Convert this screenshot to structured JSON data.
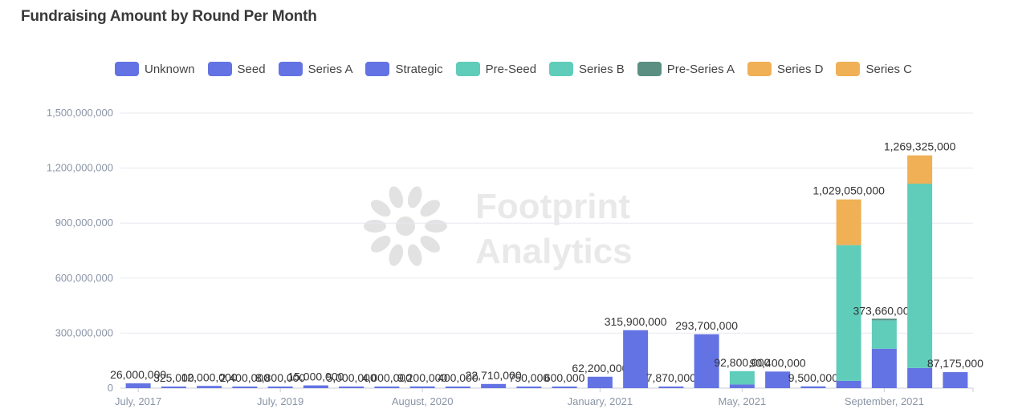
{
  "title": "Fundraising Amount by Round Per Month",
  "legend": [
    {
      "label": "Unknown",
      "color": "#6373e3"
    },
    {
      "label": "Seed",
      "color": "#6373e3"
    },
    {
      "label": "Series A",
      "color": "#6373e3"
    },
    {
      "label": "Strategic",
      "color": "#6373e3"
    },
    {
      "label": "Pre-Seed",
      "color": "#5fcdba"
    },
    {
      "label": "Series B",
      "color": "#5fcdba"
    },
    {
      "label": "Pre-Series A",
      "color": "#5a8f82"
    },
    {
      "label": "Series D",
      "color": "#f0b055"
    },
    {
      "label": "Series C",
      "color": "#f0b055"
    }
  ],
  "watermark": {
    "line1": "Footprint",
    "line2": "Analytics"
  },
  "chart_data": {
    "type": "bar",
    "stacked": true,
    "title": "Fundraising Amount by Round Per Month",
    "ylim": [
      0,
      1500000000
    ],
    "yticks": [
      "0",
      "300,000,000",
      "600,000,000",
      "900,000,000",
      "1,200,000,000",
      "1,500,000,000"
    ],
    "grid": true,
    "legend_position": "top",
    "x_tick_labels": [
      "July, 2017",
      "July, 2019",
      "August, 2020",
      "January, 2021",
      "May, 2021",
      "September, 2021"
    ],
    "bars": [
      {
        "label": "26,000,000",
        "total": 26000000,
        "segments": [
          {
            "v": 26000000,
            "c": "#6373e3"
          }
        ]
      },
      {
        "label": "325,000",
        "total": 325000,
        "segments": [
          {
            "v": 325000,
            "c": "#6373e3"
          }
        ]
      },
      {
        "label": "12,000,000",
        "total": 12000000,
        "segments": [
          {
            "v": 12000000,
            "c": "#6373e3"
          }
        ]
      },
      {
        "label": "2,400,000",
        "total": 2400000,
        "segments": [
          {
            "v": 2400000,
            "c": "#6373e3"
          }
        ]
      },
      {
        "label": "8,800,000",
        "total": 8800000,
        "segments": [
          {
            "v": 8800000,
            "c": "#6373e3"
          }
        ]
      },
      {
        "label": "15,000,000",
        "total": 15000000,
        "segments": [
          {
            "v": 15000000,
            "c": "#6373e3"
          }
        ]
      },
      {
        "label": "5,000,000",
        "total": 5000000,
        "segments": [
          {
            "v": 5000000,
            "c": "#6373e3"
          }
        ]
      },
      {
        "label": "4,000,000",
        "total": 4000000,
        "segments": [
          {
            "v": 4000000,
            "c": "#6373e3"
          }
        ]
      },
      {
        "label": "9,200,000",
        "total": 9200000,
        "segments": [
          {
            "v": 9200000,
            "c": "#6373e3"
          }
        ]
      },
      {
        "label": "400,000",
        "total": 400000,
        "segments": [
          {
            "v": 400000,
            "c": "#6373e3"
          }
        ]
      },
      {
        "label": "22,710,000",
        "total": 22710000,
        "segments": [
          {
            "v": 22710000,
            "c": "#6373e3"
          }
        ]
      },
      {
        "label": "750,000",
        "total": 750000,
        "segments": [
          {
            "v": 750000,
            "c": "#6373e3"
          }
        ]
      },
      {
        "label": "600,000",
        "total": 600000,
        "segments": [
          {
            "v": 600000,
            "c": "#6373e3"
          }
        ]
      },
      {
        "label": "62,200,000",
        "total": 62200000,
        "segments": [
          {
            "v": 62200000,
            "c": "#6373e3"
          }
        ]
      },
      {
        "label": "315,900,000",
        "total": 315900000,
        "segments": [
          {
            "v": 315900000,
            "c": "#6373e3"
          }
        ]
      },
      {
        "label": "7,870,000",
        "total": 7870000,
        "segments": [
          {
            "v": 7870000,
            "c": "#6373e3"
          }
        ]
      },
      {
        "label": "293,700,000",
        "total": 293700000,
        "segments": [
          {
            "v": 293700000,
            "c": "#6373e3"
          }
        ]
      },
      {
        "label": "92,800,000",
        "total": 92800000,
        "segments": [
          {
            "v": 20000000,
            "c": "#6373e3"
          },
          {
            "v": 72800000,
            "c": "#5fcdba"
          }
        ]
      },
      {
        "label": "90,400,000",
        "total": 90400000,
        "segments": [
          {
            "v": 90400000,
            "c": "#6373e3"
          }
        ]
      },
      {
        "label": "9,500,000",
        "total": 9500000,
        "segments": [
          {
            "v": 9500000,
            "c": "#6373e3"
          }
        ]
      },
      {
        "label": "1,029,050,000",
        "total": 1029050000,
        "segments": [
          {
            "v": 40000000,
            "c": "#6373e3"
          },
          {
            "v": 740000000,
            "c": "#5fcdba"
          },
          {
            "v": 249050000,
            "c": "#f0b055"
          }
        ]
      },
      {
        "label": "373,660,000",
        "total": 373660000,
        "segments": [
          {
            "v": 215000000,
            "c": "#6373e3"
          },
          {
            "v": 155000000,
            "c": "#5fcdba"
          },
          {
            "v": 3660000,
            "c": "#5a8f82"
          }
        ]
      },
      {
        "label": "1,269,325,000",
        "total": 1269325000,
        "segments": [
          {
            "v": 110000000,
            "c": "#6373e3"
          },
          {
            "v": 1005000000,
            "c": "#5fcdba"
          },
          {
            "v": 154325000,
            "c": "#f0b055"
          }
        ]
      },
      {
        "label": "87,175,000",
        "total": 87175000,
        "segments": [
          {
            "v": 87175000,
            "c": "#6373e3"
          }
        ]
      }
    ]
  }
}
